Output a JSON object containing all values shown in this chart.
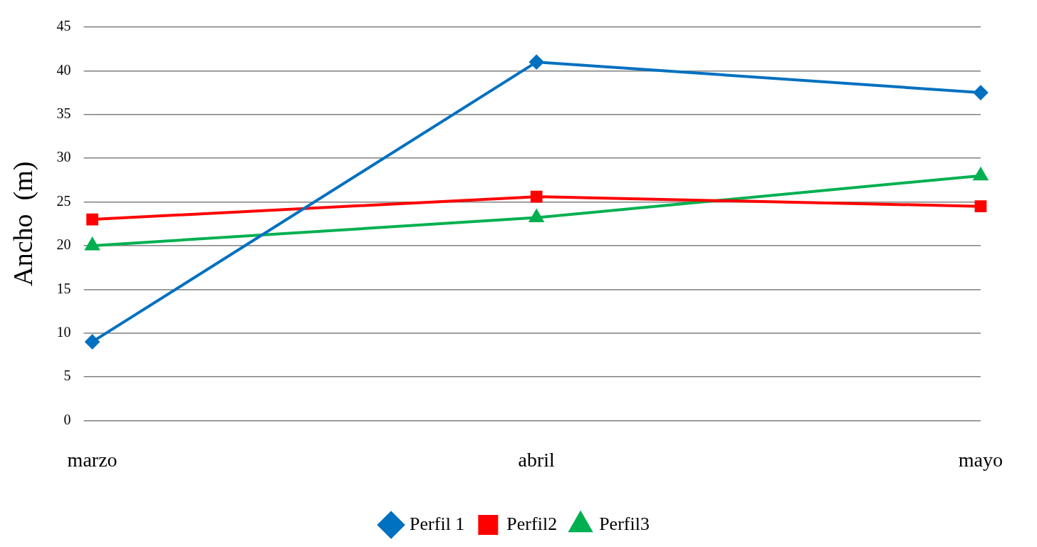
{
  "chart_data": {
    "type": "line",
    "ylabel": "Ancho  (m)",
    "categories": [
      "marzo",
      "abril",
      "mayo"
    ],
    "series": [
      {
        "name": "Perfil 1",
        "color": "#0070c0",
        "marker": "diamond",
        "values": [
          9,
          41,
          37.5
        ]
      },
      {
        "name": "Perfil2",
        "color": "#ff0000",
        "marker": "square",
        "values": [
          23,
          25.6,
          24.5
        ]
      },
      {
        "name": "Perfil3",
        "color": "#00b050",
        "marker": "triangle",
        "values": [
          20,
          23.2,
          28
        ]
      }
    ],
    "ylim": [
      0,
      45
    ],
    "yticks": [
      0,
      5,
      10,
      15,
      20,
      25,
      30,
      35,
      40,
      45
    ],
    "grid": "y",
    "legend": "bottom",
    "line_style": "solid"
  }
}
